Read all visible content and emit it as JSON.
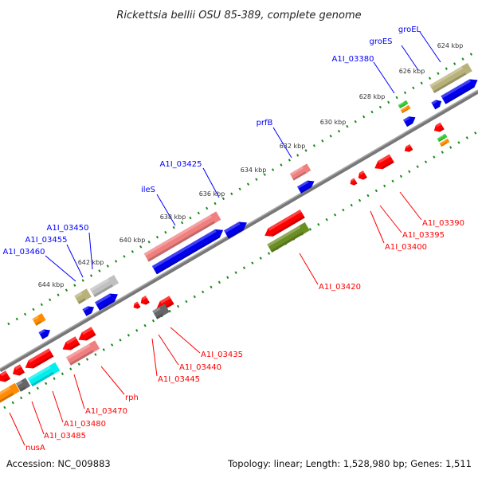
{
  "title": "Rickettsia bellii OSU 85-389, complete genome",
  "footer": {
    "accession": "Accession: NC_009883",
    "summary": "Topology: linear; Length: 1,528,980 bp; Genes: 1,511"
  },
  "ticks": [
    "624 kbp",
    "626 kbp",
    "628 kbp",
    "630 kbp",
    "632 kbp",
    "634 kbp",
    "636 kbp",
    "638 kbp",
    "640 kbp",
    "642 kbp",
    "644 kbp"
  ],
  "forward_labels": [
    "groEL",
    "groES",
    "A1I_03380",
    "prfB",
    "A1I_03425",
    "ileS",
    "A1I_03450",
    "A1I_03455",
    "A1I_03460"
  ],
  "reverse_labels": [
    "A1I_03390",
    "A1I_03395",
    "A1I_03400",
    "A1I_03420",
    "A1I_03435",
    "A1I_03440",
    "A1I_03445",
    "rph",
    "A1I_03470",
    "A1I_03480",
    "A1I_03485",
    "nusA"
  ],
  "colors": {
    "forward_label": "#0000ff",
    "reverse_label": "#ff0000",
    "backbone": "#888888",
    "ticks": "#1a8a1a"
  }
}
